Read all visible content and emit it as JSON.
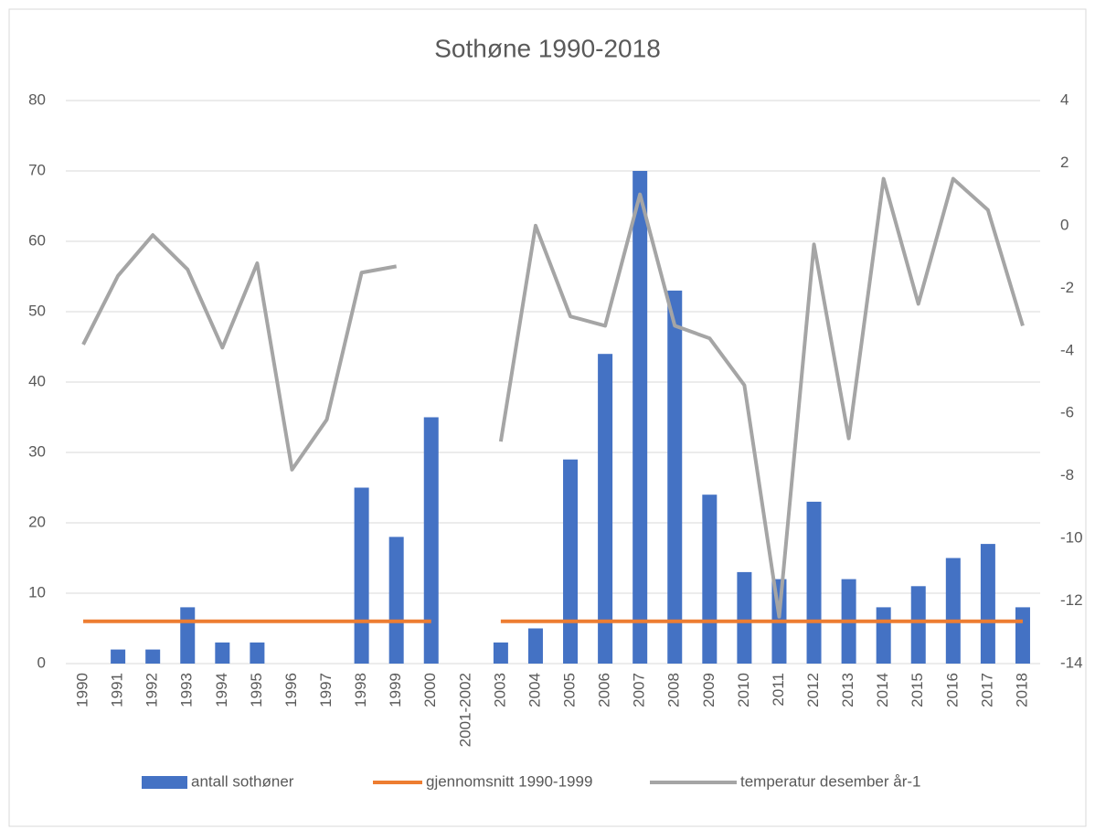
{
  "chart_data": {
    "type": "combo",
    "title": "Sothøne 1990-2018",
    "categories": [
      "1990",
      "1991",
      "1992",
      "1993",
      "1994",
      "1995",
      "1996",
      "1997",
      "1998",
      "1999",
      "2000",
      "2001-2002",
      "2003",
      "2004",
      "2005",
      "2006",
      "2007",
      "2008",
      "2009",
      "2010",
      "2011",
      "2012",
      "2013",
      "2014",
      "2015",
      "2016",
      "2017",
      "2018"
    ],
    "series": [
      {
        "name": "antall sothøner",
        "type": "bar",
        "axis": "y",
        "color": "#4472c4",
        "values": [
          0,
          2,
          2,
          8,
          3,
          3,
          0,
          0,
          25,
          18,
          35,
          null,
          3,
          5,
          29,
          44,
          70,
          53,
          24,
          13,
          12,
          23,
          12,
          8,
          11,
          15,
          17,
          8
        ]
      },
      {
        "name": "gjennomsnitt 1990-1999",
        "type": "line",
        "axis": "y",
        "color": "#ed7d31",
        "values": [
          6,
          6,
          6,
          6,
          6,
          6,
          6,
          6,
          6,
          6,
          6,
          null,
          6,
          6,
          6,
          6,
          6,
          6,
          6,
          6,
          6,
          6,
          6,
          6,
          6,
          6,
          6,
          6
        ]
      },
      {
        "name": "temperatur desember år-1",
        "type": "line",
        "axis": "y2",
        "color": "#a5a5a5",
        "values": [
          -3.8,
          -1.6,
          -0.3,
          -1.4,
          -3.9,
          -1.2,
          -7.8,
          -6.2,
          -1.5,
          -1.3,
          null,
          null,
          -6.9,
          0.0,
          -2.9,
          -3.2,
          1.0,
          -3.2,
          -3.6,
          -5.1,
          -12.5,
          -0.6,
          -6.8,
          1.5,
          -2.5,
          1.5,
          0.5,
          -3.2
        ]
      }
    ],
    "ylim": [
      0,
      80
    ],
    "yticks": [
      0,
      10,
      20,
      30,
      40,
      50,
      60,
      70,
      80
    ],
    "y2lim": [
      -14,
      4
    ],
    "y2ticks": [
      -14,
      -12,
      -10,
      -8,
      -6,
      -4,
      -2,
      0,
      2,
      4
    ],
    "grid": true,
    "legend": "bottom"
  }
}
